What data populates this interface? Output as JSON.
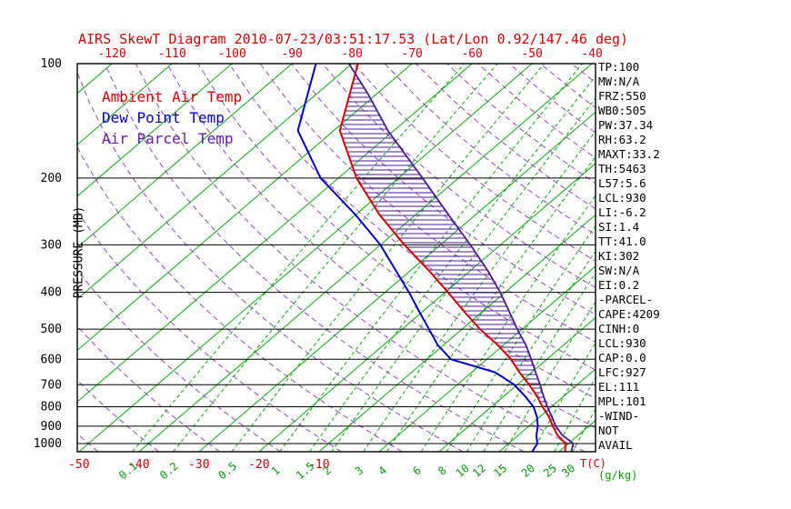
{
  "title": "AIRS SkewT Diagram 2010-07-23/03:51:17.53 (Lat/Lon 0.92/147.46 deg)",
  "stats": [
    "TP:100",
    "MW:N/A",
    "FRZ:550",
    "WB0:505",
    "PW:37.34",
    "RH:63.2",
    "MAXT:33.2",
    "TH:5463",
    "L57:5.6",
    "LCL:930",
    "LI:-6.2",
    "SI:1.4",
    "TT:41.0",
    "KI:302",
    "SW:N/A",
    "EI:0.2",
    "-PARCEL-",
    "CAPE:4209",
    "CINH:0",
    "LCL:930",
    "CAP:0.0",
    "LFC:927",
    "EL:111",
    "MPL:101",
    "-WIND-",
    "NOT",
    "AVAIL"
  ],
  "chart_data": {
    "type": "line",
    "variant": "skewt-log-p",
    "title": "AIRS SkewT Diagram 2010-07-23/03:51:17.53 (Lat/Lon 0.92/147.46 deg)",
    "axes": {
      "pressure_label": "PRESSURE (MB)",
      "pressure_levels": [
        100,
        200,
        300,
        400,
        500,
        600,
        700,
        800,
        900,
        1000
      ],
      "pressure_range_hPa": [
        100,
        1050
      ],
      "top_temp_labels_c": [
        -120,
        -110,
        -100,
        -90,
        -80,
        -70,
        -60,
        -50,
        -40
      ],
      "bottom_temp_labels_c": [
        -50,
        -40,
        -30,
        -20,
        -10
      ],
      "temp_unit": "T(C)",
      "mixing_unit": "(g/kg)",
      "mixing_ratios_g_kg": [
        0.1,
        0.2,
        0.5,
        1,
        1.5,
        2,
        3,
        4,
        6,
        8,
        10,
        12,
        15,
        20,
        25,
        30
      ]
    },
    "background_lines": {
      "isotherms_c": {
        "min": -120,
        "max": 40,
        "step": 10
      },
      "dry_adiabats_theta_c": {
        "min": -50,
        "max": 200,
        "step": 10
      }
    },
    "colors": {
      "red": "#dc0000",
      "green": "#00b400",
      "green_label": "#00a000",
      "blue": "#0000cd",
      "violet_bg": "#9944cc",
      "parcel": "#4b1a9a",
      "black": "#000000"
    },
    "series": [
      {
        "id": "ambient",
        "name": "Ambient Air Temp",
        "color": "#dc0000",
        "points_p_hPa_T_C": [
          [
            1050,
            31
          ],
          [
            1000,
            29.5
          ],
          [
            950,
            26.5
          ],
          [
            900,
            24
          ],
          [
            850,
            21.5
          ],
          [
            800,
            18.5
          ],
          [
            750,
            15.5
          ],
          [
            700,
            12
          ],
          [
            650,
            8
          ],
          [
            600,
            4
          ],
          [
            550,
            -1
          ],
          [
            500,
            -7
          ],
          [
            450,
            -13
          ],
          [
            400,
            -19.5
          ],
          [
            350,
            -27
          ],
          [
            300,
            -36
          ],
          [
            250,
            -46
          ],
          [
            200,
            -57
          ],
          [
            150,
            -69
          ],
          [
            100,
            -79
          ]
        ]
      },
      {
        "id": "dewpoint",
        "name": "Dew Point Temp",
        "color": "#0000cd",
        "points_p_hPa_T_C": [
          [
            1050,
            25.5
          ],
          [
            1000,
            24.8
          ],
          [
            950,
            23
          ],
          [
            900,
            21.5
          ],
          [
            850,
            19.5
          ],
          [
            800,
            17
          ],
          [
            750,
            13.5
          ],
          [
            700,
            9.5
          ],
          [
            650,
            4
          ],
          [
            600,
            -6
          ],
          [
            550,
            -11
          ],
          [
            500,
            -15.5
          ],
          [
            450,
            -20.5
          ],
          [
            400,
            -26
          ],
          [
            350,
            -32.5
          ],
          [
            300,
            -40
          ],
          [
            250,
            -50
          ],
          [
            200,
            -63
          ],
          [
            150,
            -76
          ],
          [
            100,
            -86
          ]
        ]
      },
      {
        "id": "parcel",
        "name": "Air Parcel Temp",
        "color": "#4b1a9a",
        "points_p_hPa_T_C": [
          [
            1050,
            32
          ],
          [
            1000,
            30.8
          ],
          [
            950,
            27.3
          ],
          [
            900,
            24.5
          ],
          [
            850,
            22
          ],
          [
            800,
            19.3
          ],
          [
            750,
            16.6
          ],
          [
            700,
            13.8
          ],
          [
            650,
            10.7
          ],
          [
            600,
            7.4
          ],
          [
            550,
            3.7
          ],
          [
            500,
            -0.8
          ],
          [
            450,
            -5.5
          ],
          [
            400,
            -10.8
          ],
          [
            350,
            -17.2
          ],
          [
            300,
            -25
          ],
          [
            250,
            -34.5
          ],
          [
            200,
            -46
          ],
          [
            150,
            -61
          ],
          [
            120,
            -71.5
          ],
          [
            100,
            -80.5
          ]
        ]
      }
    ],
    "hatch": {
      "between": [
        "ambient",
        "parcel"
      ],
      "style": "horizontal",
      "note": "CAPE area"
    }
  }
}
